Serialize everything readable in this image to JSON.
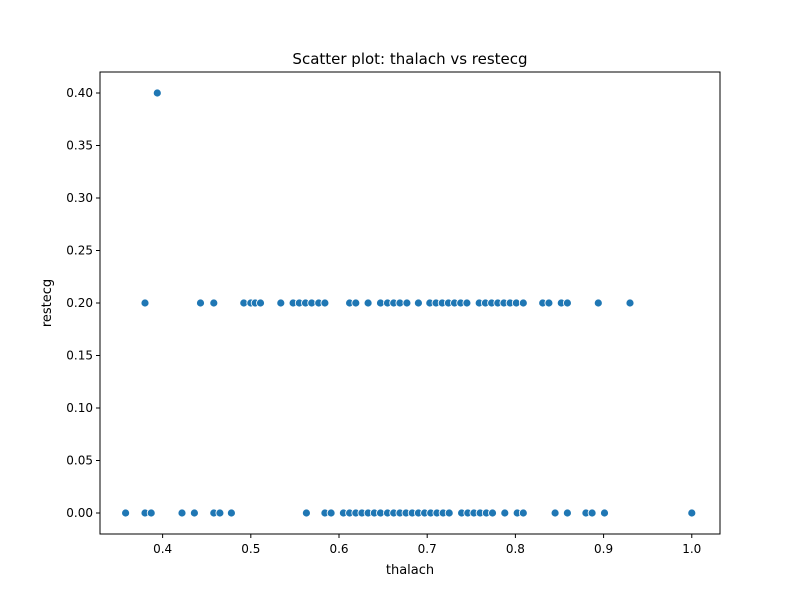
{
  "chart_data": {
    "type": "scatter",
    "title": "Scatter plot: thalach vs restecg",
    "xlabel": "thalach",
    "ylabel": "restecg",
    "xlim": [
      0.329,
      1.032
    ],
    "ylim": [
      -0.02,
      0.42
    ],
    "xticks": [
      0.4,
      0.5,
      0.6,
      0.7,
      0.8,
      0.9,
      1.0
    ],
    "xtick_labels": [
      "0.4",
      "0.5",
      "0.6",
      "0.7",
      "0.8",
      "0.9",
      "1.0"
    ],
    "yticks": [
      0.0,
      0.05,
      0.1,
      0.15,
      0.2,
      0.25,
      0.3,
      0.35,
      0.4
    ],
    "ytick_labels": [
      "0.00",
      "0.05",
      "0.10",
      "0.15",
      "0.20",
      "0.25",
      "0.30",
      "0.35",
      "0.40"
    ],
    "grid": false,
    "marker_color": "#1f77b4",
    "series": [
      {
        "x": [
          0.394,
          0.38,
          0.443,
          0.458,
          0.492,
          0.5,
          0.505,
          0.511,
          0.534,
          0.548,
          0.555,
          0.562,
          0.569,
          0.577,
          0.584,
          0.612,
          0.619,
          0.633,
          0.647,
          0.655,
          0.662,
          0.669,
          0.677,
          0.69,
          0.703,
          0.71,
          0.717,
          0.724,
          0.731,
          0.738,
          0.745,
          0.759,
          0.766,
          0.773,
          0.78,
          0.787,
          0.794,
          0.801,
          0.809,
          0.831,
          0.838,
          0.852,
          0.859,
          0.894,
          0.93,
          0.358,
          0.38,
          0.387,
          0.422,
          0.436,
          0.458,
          0.465,
          0.478,
          0.563,
          0.584,
          0.591,
          0.605,
          0.612,
          0.619,
          0.626,
          0.633,
          0.64,
          0.647,
          0.655,
          0.662,
          0.669,
          0.676,
          0.683,
          0.69,
          0.697,
          0.704,
          0.711,
          0.718,
          0.725,
          0.739,
          0.746,
          0.753,
          0.76,
          0.767,
          0.774,
          0.788,
          0.802,
          0.809,
          0.845,
          0.859,
          0.88,
          0.887,
          0.901,
          1.0
        ],
        "y": [
          0.4,
          0.2,
          0.2,
          0.2,
          0.2,
          0.2,
          0.2,
          0.2,
          0.2,
          0.2,
          0.2,
          0.2,
          0.2,
          0.2,
          0.2,
          0.2,
          0.2,
          0.2,
          0.2,
          0.2,
          0.2,
          0.2,
          0.2,
          0.2,
          0.2,
          0.2,
          0.2,
          0.2,
          0.2,
          0.2,
          0.2,
          0.2,
          0.2,
          0.2,
          0.2,
          0.2,
          0.2,
          0.2,
          0.2,
          0.2,
          0.2,
          0.2,
          0.2,
          0.2,
          0.2,
          0.0,
          0.0,
          0.0,
          0.0,
          0.0,
          0.0,
          0.0,
          0.0,
          0.0,
          0.0,
          0.0,
          0.0,
          0.0,
          0.0,
          0.0,
          0.0,
          0.0,
          0.0,
          0.0,
          0.0,
          0.0,
          0.0,
          0.0,
          0.0,
          0.0,
          0.0,
          0.0,
          0.0,
          0.0,
          0.0,
          0.0,
          0.0,
          0.0,
          0.0,
          0.0,
          0.0,
          0.0,
          0.0,
          0.0,
          0.0,
          0.0,
          0.0,
          0.0,
          0.0
        ]
      }
    ]
  }
}
